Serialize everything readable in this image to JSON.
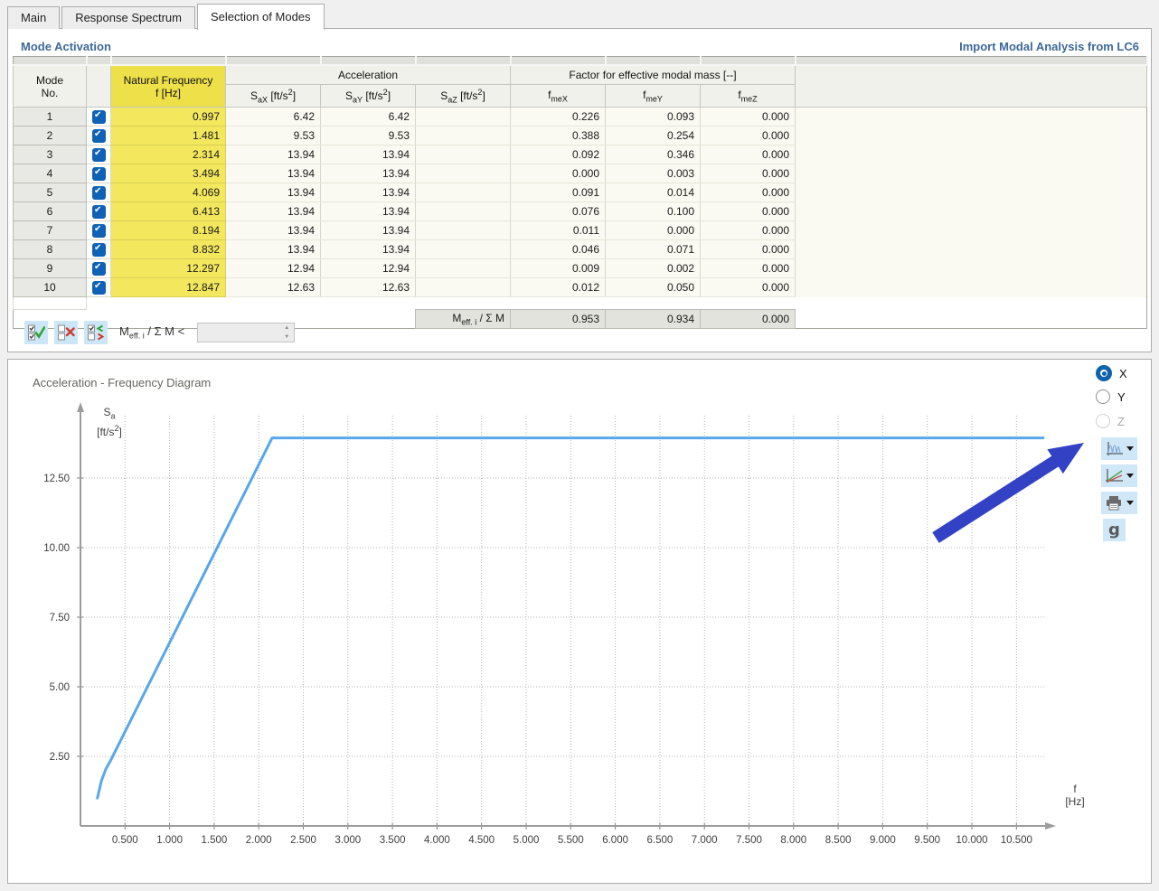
{
  "tabs": {
    "items": [
      {
        "label": "Main",
        "active": false
      },
      {
        "label": "Response Spectrum",
        "active": false
      },
      {
        "label": "Selection of Modes",
        "active": true
      }
    ]
  },
  "mode_activation": {
    "title": "Mode Activation",
    "import_link": "Import Modal Analysis from LC6",
    "table": {
      "col_mode_line1": "Mode",
      "col_mode_line2": "No.",
      "col_f_line1": "Natural Frequency",
      "col_f_line2": "f [Hz]",
      "group_accel": "Acceleration",
      "sax": {
        "pre": "S",
        "sub": "aX",
        "mid": " [ft/s",
        "sup": "2",
        "post": "]"
      },
      "say": {
        "pre": "S",
        "sub": "aY",
        "mid": " [ft/s",
        "sup": "2",
        "post": "]"
      },
      "saz": {
        "pre": "S",
        "sub": "aZ",
        "mid": " [ft/s",
        "sup": "2",
        "post": "]"
      },
      "group_factor": "Factor for effective modal mass [--]",
      "fmex": {
        "pre": "f",
        "sub": "meX"
      },
      "fmey": {
        "pre": "f",
        "sub": "meY"
      },
      "fmez": {
        "pre": "f",
        "sub": "meZ"
      },
      "rows": [
        {
          "no": "1",
          "checked": true,
          "f": "0.997",
          "sax": "6.42",
          "say": "6.42",
          "saz": "",
          "fmex": "0.226",
          "fmey": "0.093",
          "fmez": "0.000"
        },
        {
          "no": "2",
          "checked": true,
          "f": "1.481",
          "sax": "9.53",
          "say": "9.53",
          "saz": "",
          "fmex": "0.388",
          "fmey": "0.254",
          "fmez": "0.000"
        },
        {
          "no": "3",
          "checked": true,
          "f": "2.314",
          "sax": "13.94",
          "say": "13.94",
          "saz": "",
          "fmex": "0.092",
          "fmey": "0.346",
          "fmez": "0.000"
        },
        {
          "no": "4",
          "checked": true,
          "f": "3.494",
          "sax": "13.94",
          "say": "13.94",
          "saz": "",
          "fmex": "0.000",
          "fmey": "0.003",
          "fmez": "0.000"
        },
        {
          "no": "5",
          "checked": true,
          "f": "4.069",
          "sax": "13.94",
          "say": "13.94",
          "saz": "",
          "fmex": "0.091",
          "fmey": "0.014",
          "fmez": "0.000"
        },
        {
          "no": "6",
          "checked": true,
          "f": "6.413",
          "sax": "13.94",
          "say": "13.94",
          "saz": "",
          "fmex": "0.076",
          "fmey": "0.100",
          "fmez": "0.000"
        },
        {
          "no": "7",
          "checked": true,
          "f": "8.194",
          "sax": "13.94",
          "say": "13.94",
          "saz": "",
          "fmex": "0.011",
          "fmey": "0.000",
          "fmez": "0.000"
        },
        {
          "no": "8",
          "checked": true,
          "f": "8.832",
          "sax": "13.94",
          "say": "13.94",
          "saz": "",
          "fmex": "0.046",
          "fmey": "0.071",
          "fmez": "0.000"
        },
        {
          "no": "9",
          "checked": true,
          "f": "12.297",
          "sax": "12.94",
          "say": "12.94",
          "saz": "",
          "fmex": "0.009",
          "fmey": "0.002",
          "fmez": "0.000"
        },
        {
          "no": "10",
          "checked": true,
          "f": "12.847",
          "sax": "12.63",
          "say": "12.63",
          "saz": "",
          "fmex": "0.012",
          "fmey": "0.050",
          "fmez": "0.000"
        }
      ],
      "summary": {
        "label": {
          "pre": "M",
          "sub": "eff. i",
          "post": " / Σ M"
        },
        "fmex": "0.953",
        "fmey": "0.934",
        "fmez": "0.000"
      }
    },
    "toolbar": {
      "condition_label": {
        "pre": "M",
        "sub": "eff. i",
        "post": " / Σ M <"
      },
      "condition_value": ""
    }
  },
  "diagram": {
    "direction_options": [
      {
        "label": "X",
        "selected": true,
        "enabled": true
      },
      {
        "label": "Y",
        "selected": false,
        "enabled": true
      },
      {
        "label": "Z",
        "selected": false,
        "enabled": false
      }
    ],
    "g_button_label": "g"
  },
  "annotation": {
    "description": "blue arrow pointing to spectrum display dropdown button",
    "color": "#3342C4"
  },
  "chart_data": {
    "type": "line",
    "title": "Acceleration - Frequency Diagram",
    "xlabel": "f",
    "xunit": "[Hz]",
    "ylabel_pre": "S",
    "ylabel_sub": "a",
    "yunit_pre": "[ft/s",
    "yunit_sup": "2",
    "yunit_post": "]",
    "xlim": [
      0,
      10.9
    ],
    "ylim": [
      0,
      14.9
    ],
    "grid": "dotted",
    "legend": "none",
    "xticks": [
      {
        "value": 0.5,
        "label": "0.500"
      },
      {
        "value": 1.0,
        "label": "1.000"
      },
      {
        "value": 1.5,
        "label": "1.500"
      },
      {
        "value": 2.0,
        "label": "2.000"
      },
      {
        "value": 2.5,
        "label": "2.500"
      },
      {
        "value": 3.0,
        "label": "3.000"
      },
      {
        "value": 3.5,
        "label": "3.500"
      },
      {
        "value": 4.0,
        "label": "4.000"
      },
      {
        "value": 4.5,
        "label": "4.500"
      },
      {
        "value": 5.0,
        "label": "5.000"
      },
      {
        "value": 5.5,
        "label": "5.500"
      },
      {
        "value": 6.0,
        "label": "6.000"
      },
      {
        "value": 6.5,
        "label": "6.500"
      },
      {
        "value": 7.0,
        "label": "7.000"
      },
      {
        "value": 7.5,
        "label": "7.500"
      },
      {
        "value": 8.0,
        "label": "8.000"
      },
      {
        "value": 8.5,
        "label": "8.500"
      },
      {
        "value": 9.0,
        "label": "9.000"
      },
      {
        "value": 9.5,
        "label": "9.500"
      },
      {
        "value": 10.0,
        "label": "10.000"
      },
      {
        "value": 10.5,
        "label": "10.500"
      }
    ],
    "yticks": [
      {
        "value": 2.5,
        "label": "2.50"
      },
      {
        "value": 5.0,
        "label": "5.00"
      },
      {
        "value": 7.5,
        "label": "7.50"
      },
      {
        "value": 10.0,
        "label": "10.00"
      },
      {
        "value": 12.5,
        "label": "12.50"
      }
    ],
    "series": [
      {
        "name": "response-spectrum-x",
        "color": "#57A7EC",
        "points": [
          [
            0.19,
            1.0
          ],
          [
            0.235,
            1.62
          ],
          [
            0.285,
            2.05
          ],
          [
            0.33,
            2.3
          ],
          [
            2.15,
            13.94
          ],
          [
            10.8,
            13.94
          ]
        ]
      }
    ]
  }
}
